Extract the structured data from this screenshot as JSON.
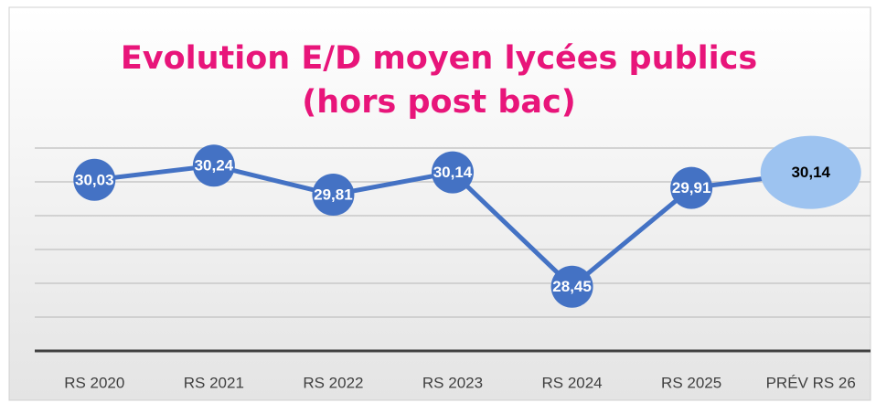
{
  "chart_data": {
    "type": "line",
    "title": "Evolution E/D moyen lycées publics (hors post bac)",
    "categories": [
      "RS 2020",
      "RS 2021",
      "RS 2022",
      "RS 2023",
      "RS 2024",
      "RS 2025",
      "PRÉV RS 26"
    ],
    "series": [
      {
        "color": "#4472c4",
        "values": [
          30.03,
          30.24,
          29.81,
          30.14,
          28.45,
          29.91,
          30.14
        ],
        "value_labels": [
          "30,03",
          "30,24",
          "29,81",
          "30,14",
          "28,45",
          "29,91",
          "30,14"
        ],
        "marker_colors": [
          "#4472c4",
          "#4472c4",
          "#4472c4",
          "#4472c4",
          "#4472c4",
          "#4472c4",
          "#9dc3f0"
        ],
        "label_colors": [
          "#ffffff",
          "#ffffff",
          "#ffffff",
          "#ffffff",
          "#ffffff",
          "#ffffff",
          "#000000"
        ]
      }
    ],
    "ylim": [
      27.5,
      31
    ],
    "yticks": [
      28,
      28.5,
      29,
      29.5,
      30,
      30.5
    ],
    "grid": true
  }
}
